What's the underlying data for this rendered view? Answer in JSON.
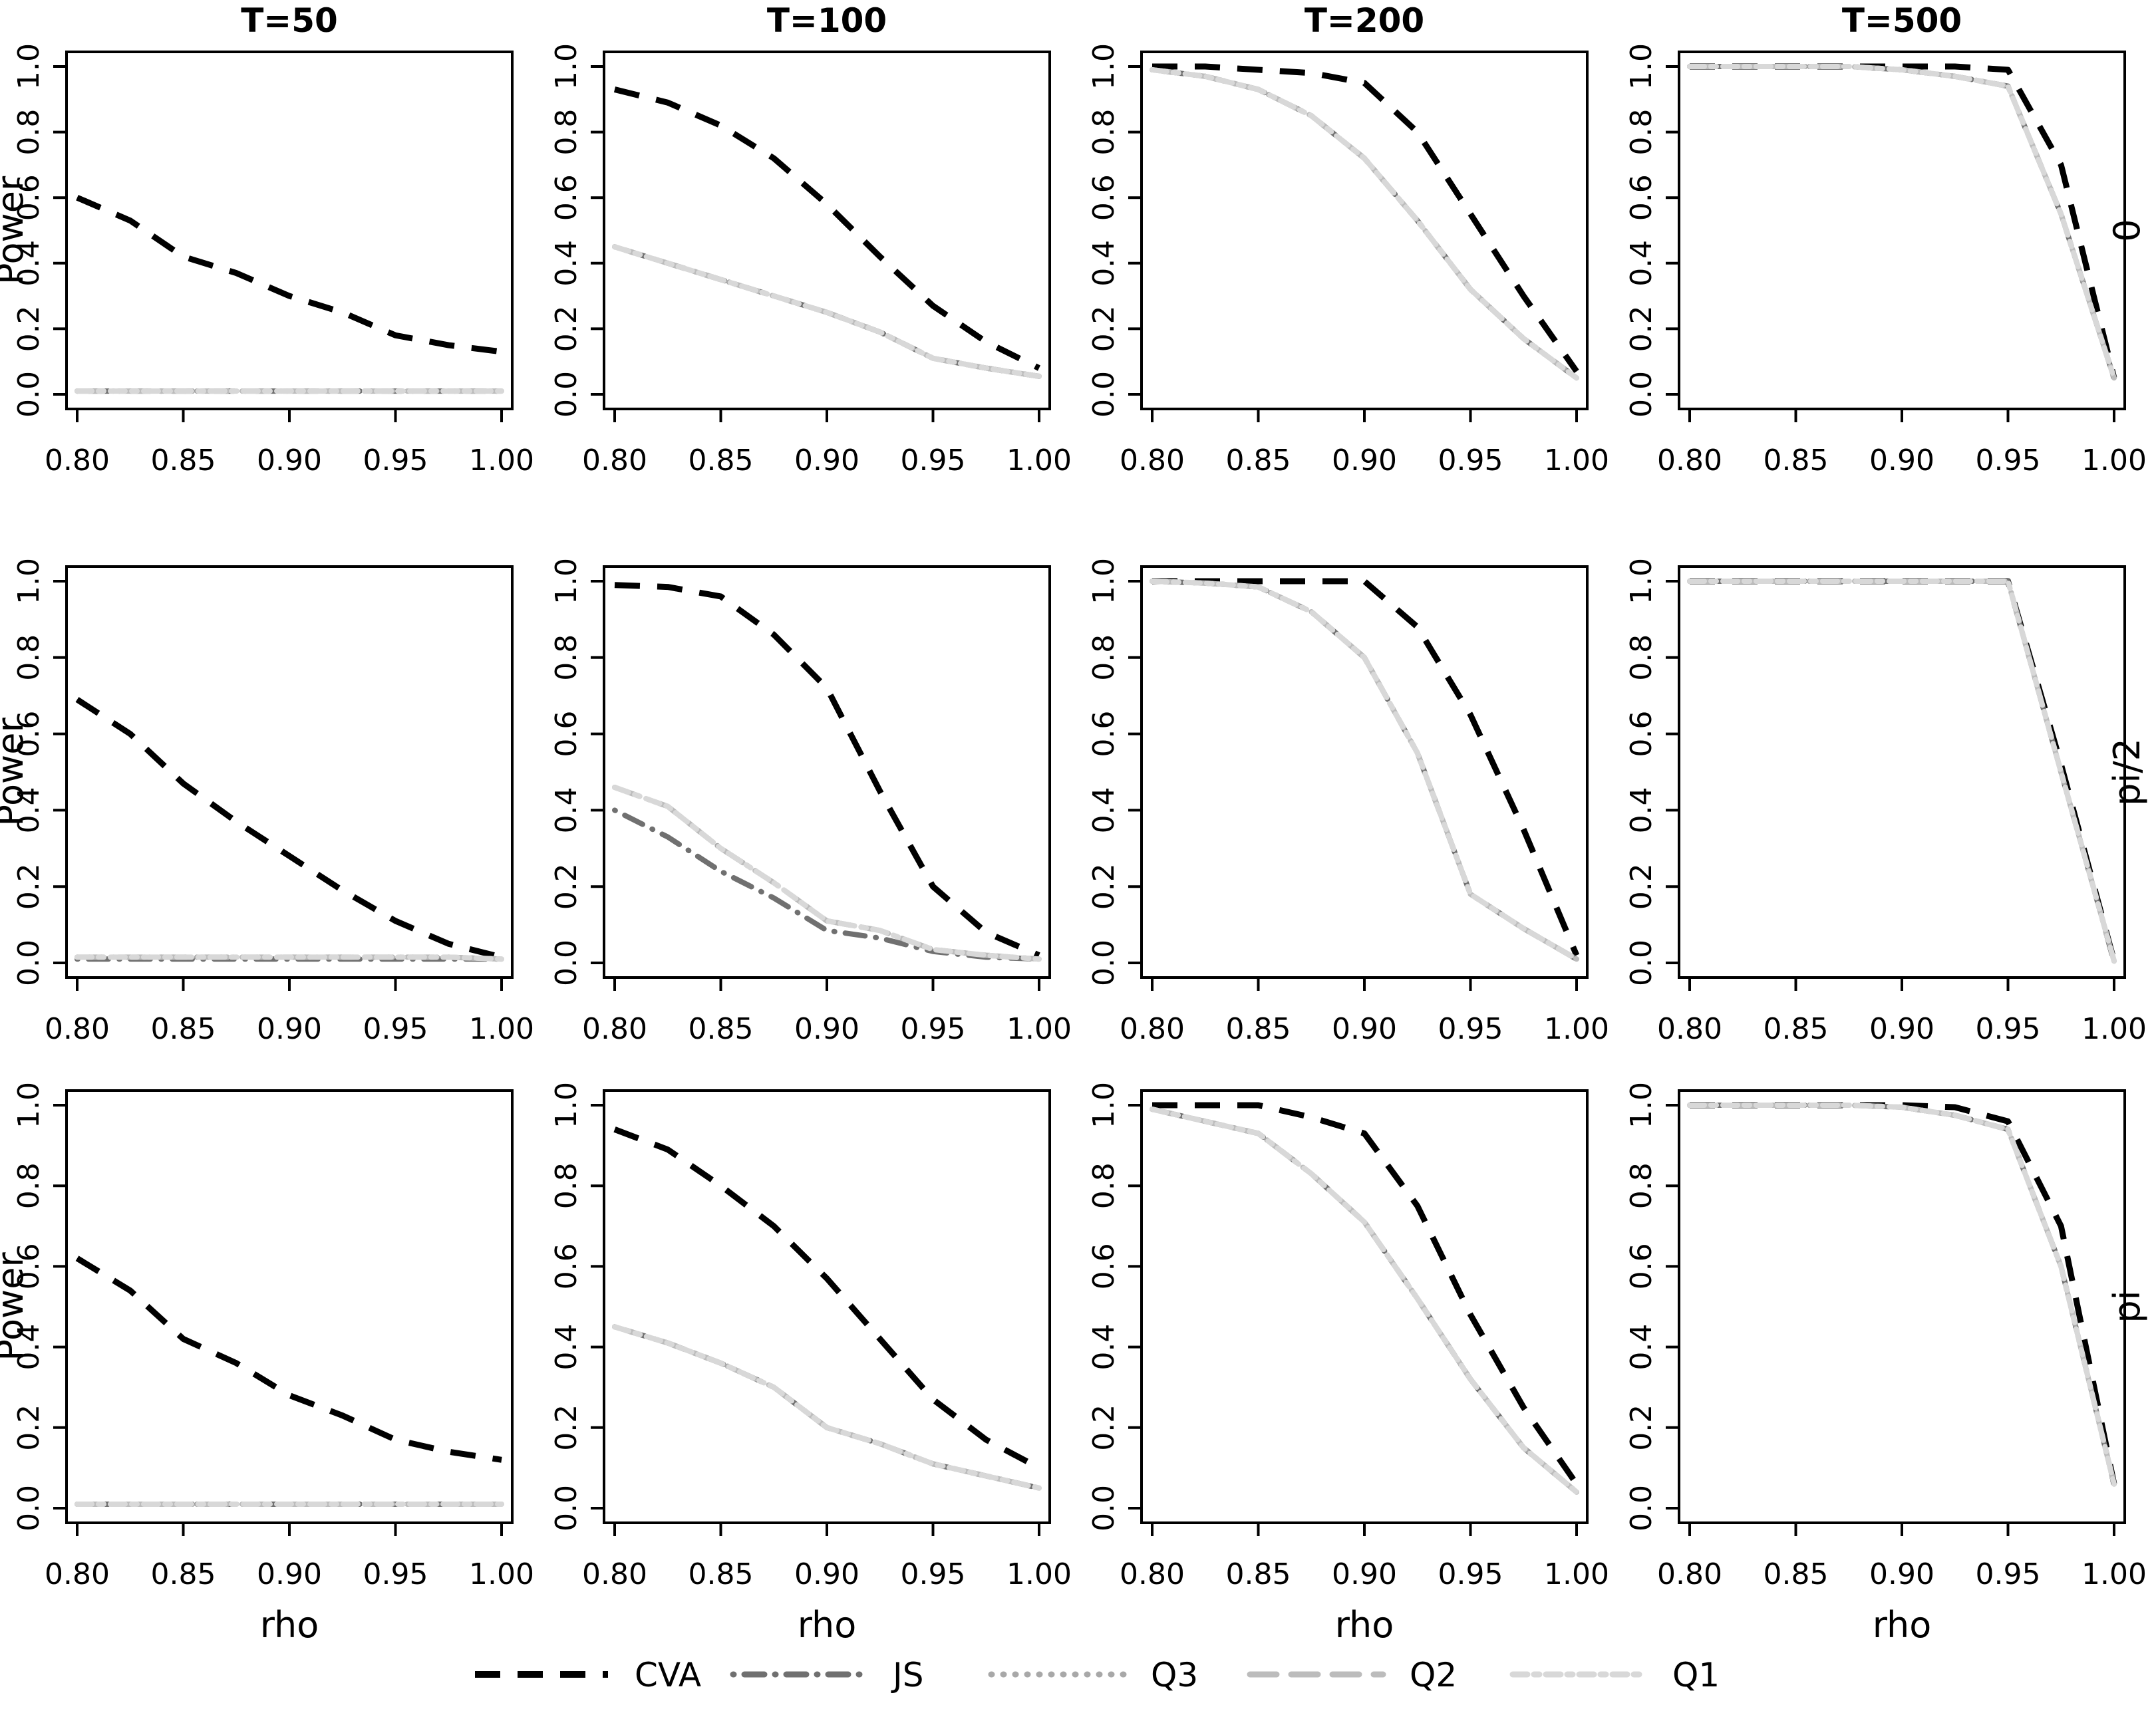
{
  "figure": {
    "col_titles": [
      "T=50",
      "T=100",
      "T=200",
      "T=500"
    ],
    "row_labels": [
      "0",
      "pi/2",
      "pi"
    ],
    "ylabel": "Power",
    "xlabel": "rho",
    "x_tick_labels": [
      "0.80",
      "0.85",
      "0.90",
      "0.95",
      "1.00"
    ],
    "y_tick_labels": [
      "0.0",
      "0.2",
      "0.4",
      "0.6",
      "0.8",
      "1.0"
    ],
    "background_color": "#ffffff",
    "axis_color": "#000000"
  },
  "legend": {
    "position": "bottom-center",
    "entries": [
      {
        "label": "CVA",
        "color": "#000000",
        "dash": "38 26",
        "width": 9,
        "linecap": "butt"
      },
      {
        "label": "JS",
        "color": "#707070",
        "dash": "1 16 30 16",
        "width": 8,
        "linecap": "round"
      },
      {
        "label": "Q3",
        "color": "#a8a8a8",
        "dash": "1 17",
        "width": 8,
        "linecap": "round"
      },
      {
        "label": "Q2",
        "color": "#bcbcbc",
        "dash": "40 22",
        "width": 8,
        "linecap": "round"
      },
      {
        "label": "Q1",
        "color": "#d8d8d8",
        "dash": "22 10 8 10",
        "width": 8,
        "linecap": "round"
      }
    ]
  },
  "chart_data": {
    "type": "line",
    "title": "",
    "xlabel": "rho",
    "ylabel": "Power",
    "x": [
      0.8,
      0.825,
      0.85,
      0.875,
      0.9,
      0.925,
      0.95,
      0.975,
      1.0
    ],
    "xlim": [
      0.8,
      1.0
    ],
    "ylim": [
      0.0,
      1.0
    ],
    "grid": false,
    "series_names": [
      "CVA",
      "JS",
      "Q3",
      "Q2",
      "Q1"
    ],
    "panels": [
      {
        "row": 0,
        "col": 0,
        "title": "T=50",
        "row_label": "",
        "series": {
          "CVA": [
            0.6,
            0.53,
            0.42,
            0.37,
            0.3,
            0.25,
            0.18,
            0.15,
            0.13
          ],
          "JS": [
            0.01,
            0.01,
            0.01,
            0.01,
            0.01,
            0.01,
            0.01,
            0.01,
            0.01
          ],
          "Q3": [
            0.01,
            0.01,
            0.01,
            0.01,
            0.01,
            0.01,
            0.01,
            0.01,
            0.01
          ],
          "Q2": [
            0.01,
            0.01,
            0.01,
            0.01,
            0.01,
            0.01,
            0.01,
            0.01,
            0.01
          ],
          "Q1": [
            0.01,
            0.01,
            0.01,
            0.01,
            0.01,
            0.01,
            0.01,
            0.01,
            0.01
          ]
        }
      },
      {
        "row": 0,
        "col": 1,
        "title": "T=100",
        "row_label": "",
        "series": {
          "CVA": [
            0.93,
            0.89,
            0.82,
            0.72,
            0.58,
            0.42,
            0.27,
            0.16,
            0.08
          ],
          "JS": [
            0.45,
            0.4,
            0.35,
            0.3,
            0.25,
            0.19,
            0.11,
            0.08,
            0.055
          ],
          "Q3": [
            0.45,
            0.4,
            0.35,
            0.3,
            0.25,
            0.19,
            0.11,
            0.08,
            0.055
          ],
          "Q2": [
            0.45,
            0.4,
            0.35,
            0.3,
            0.25,
            0.19,
            0.11,
            0.08,
            0.055
          ],
          "Q1": [
            0.45,
            0.4,
            0.35,
            0.3,
            0.25,
            0.19,
            0.11,
            0.08,
            0.055
          ]
        }
      },
      {
        "row": 0,
        "col": 2,
        "title": "T=200",
        "row_label": "",
        "series": {
          "CVA": [
            1.0,
            1.0,
            0.99,
            0.98,
            0.95,
            0.8,
            0.55,
            0.3,
            0.07
          ],
          "JS": [
            0.99,
            0.97,
            0.93,
            0.85,
            0.72,
            0.53,
            0.32,
            0.17,
            0.05
          ],
          "Q3": [
            0.99,
            0.97,
            0.93,
            0.85,
            0.72,
            0.53,
            0.32,
            0.17,
            0.05
          ],
          "Q2": [
            0.99,
            0.97,
            0.93,
            0.85,
            0.72,
            0.53,
            0.32,
            0.17,
            0.05
          ],
          "Q1": [
            0.99,
            0.97,
            0.93,
            0.85,
            0.72,
            0.53,
            0.32,
            0.17,
            0.05
          ]
        }
      },
      {
        "row": 0,
        "col": 3,
        "title": "T=500",
        "row_label": "0",
        "series": {
          "CVA": [
            1.0,
            1.0,
            1.0,
            1.0,
            1.0,
            1.0,
            0.99,
            0.7,
            0.05
          ],
          "JS": [
            1.0,
            1.0,
            1.0,
            1.0,
            0.99,
            0.97,
            0.94,
            0.55,
            0.05
          ],
          "Q3": [
            1.0,
            1.0,
            1.0,
            1.0,
            0.99,
            0.97,
            0.94,
            0.55,
            0.05
          ],
          "Q2": [
            1.0,
            1.0,
            1.0,
            1.0,
            0.99,
            0.97,
            0.94,
            0.55,
            0.05
          ],
          "Q1": [
            1.0,
            1.0,
            1.0,
            1.0,
            0.99,
            0.97,
            0.94,
            0.55,
            0.05
          ]
        }
      },
      {
        "row": 1,
        "col": 0,
        "title": "",
        "row_label": "",
        "series": {
          "CVA": [
            0.69,
            0.6,
            0.47,
            0.37,
            0.28,
            0.19,
            0.11,
            0.05,
            0.015
          ],
          "JS": [
            0.01,
            0.01,
            0.01,
            0.01,
            0.01,
            0.01,
            0.01,
            0.01,
            0.01
          ],
          "Q3": [
            0.015,
            0.015,
            0.015,
            0.015,
            0.015,
            0.015,
            0.015,
            0.015,
            0.01
          ],
          "Q2": [
            0.015,
            0.015,
            0.015,
            0.015,
            0.015,
            0.015,
            0.015,
            0.015,
            0.01
          ],
          "Q1": [
            0.015,
            0.015,
            0.015,
            0.015,
            0.015,
            0.015,
            0.015,
            0.015,
            0.01
          ]
        }
      },
      {
        "row": 1,
        "col": 1,
        "title": "",
        "row_label": "",
        "series": {
          "CVA": [
            0.99,
            0.985,
            0.96,
            0.86,
            0.72,
            0.45,
            0.2,
            0.08,
            0.02
          ],
          "JS": [
            0.4,
            0.33,
            0.24,
            0.17,
            0.085,
            0.065,
            0.03,
            0.015,
            0.01
          ],
          "Q3": [
            0.46,
            0.41,
            0.3,
            0.21,
            0.11,
            0.085,
            0.035,
            0.02,
            0.01
          ],
          "Q2": [
            0.46,
            0.41,
            0.3,
            0.21,
            0.11,
            0.085,
            0.035,
            0.02,
            0.01
          ],
          "Q1": [
            0.46,
            0.41,
            0.3,
            0.21,
            0.11,
            0.085,
            0.035,
            0.02,
            0.01
          ]
        }
      },
      {
        "row": 1,
        "col": 2,
        "title": "",
        "row_label": "",
        "series": {
          "CVA": [
            1.0,
            1.0,
            1.0,
            1.0,
            1.0,
            0.88,
            0.65,
            0.35,
            0.02
          ],
          "JS": [
            1.0,
            0.995,
            0.985,
            0.92,
            0.8,
            0.55,
            0.18,
            0.09,
            0.01
          ],
          "Q3": [
            1.0,
            0.995,
            0.985,
            0.92,
            0.8,
            0.55,
            0.18,
            0.09,
            0.01
          ],
          "Q2": [
            1.0,
            0.995,
            0.985,
            0.92,
            0.8,
            0.55,
            0.18,
            0.09,
            0.01
          ],
          "Q1": [
            1.0,
            0.995,
            0.985,
            0.92,
            0.8,
            0.55,
            0.18,
            0.09,
            0.01
          ]
        }
      },
      {
        "row": 1,
        "col": 3,
        "title": "",
        "row_label": "pi/2",
        "series": {
          "CVA": [
            1.0,
            1.0,
            1.0,
            1.0,
            1.0,
            1.0,
            1.0,
            0.52,
            0.005
          ],
          "JS": [
            1.0,
            1.0,
            1.0,
            1.0,
            1.0,
            1.0,
            1.0,
            0.5,
            0.005
          ],
          "Q3": [
            1.0,
            1.0,
            1.0,
            1.0,
            1.0,
            1.0,
            1.0,
            0.5,
            0.005
          ],
          "Q2": [
            1.0,
            1.0,
            1.0,
            1.0,
            1.0,
            1.0,
            1.0,
            0.5,
            0.005
          ],
          "Q1": [
            1.0,
            1.0,
            1.0,
            1.0,
            1.0,
            1.0,
            1.0,
            0.5,
            0.005
          ]
        }
      },
      {
        "row": 2,
        "col": 0,
        "title": "",
        "row_label": "",
        "series": {
          "CVA": [
            0.62,
            0.54,
            0.42,
            0.36,
            0.28,
            0.23,
            0.17,
            0.14,
            0.12
          ],
          "JS": [
            0.01,
            0.01,
            0.01,
            0.01,
            0.01,
            0.01,
            0.01,
            0.01,
            0.01
          ],
          "Q3": [
            0.01,
            0.01,
            0.01,
            0.01,
            0.01,
            0.01,
            0.01,
            0.01,
            0.01
          ],
          "Q2": [
            0.01,
            0.01,
            0.01,
            0.01,
            0.01,
            0.01,
            0.01,
            0.01,
            0.01
          ],
          "Q1": [
            0.01,
            0.01,
            0.01,
            0.01,
            0.01,
            0.01,
            0.01,
            0.01,
            0.01
          ]
        }
      },
      {
        "row": 2,
        "col": 1,
        "title": "",
        "row_label": "",
        "series": {
          "CVA": [
            0.94,
            0.89,
            0.8,
            0.7,
            0.57,
            0.42,
            0.27,
            0.17,
            0.1
          ],
          "JS": [
            0.45,
            0.41,
            0.36,
            0.3,
            0.2,
            0.16,
            0.11,
            0.08,
            0.05
          ],
          "Q3": [
            0.45,
            0.41,
            0.36,
            0.3,
            0.2,
            0.16,
            0.11,
            0.08,
            0.05
          ],
          "Q2": [
            0.45,
            0.41,
            0.36,
            0.3,
            0.2,
            0.16,
            0.11,
            0.08,
            0.05
          ],
          "Q1": [
            0.45,
            0.41,
            0.36,
            0.3,
            0.2,
            0.16,
            0.11,
            0.08,
            0.05
          ]
        }
      },
      {
        "row": 2,
        "col": 2,
        "title": "",
        "row_label": "",
        "series": {
          "CVA": [
            1.0,
            1.0,
            1.0,
            0.97,
            0.93,
            0.75,
            0.48,
            0.25,
            0.06
          ],
          "JS": [
            0.99,
            0.96,
            0.93,
            0.83,
            0.71,
            0.52,
            0.32,
            0.15,
            0.04
          ],
          "Q3": [
            0.99,
            0.96,
            0.93,
            0.83,
            0.71,
            0.52,
            0.32,
            0.15,
            0.04
          ],
          "Q2": [
            0.99,
            0.96,
            0.93,
            0.83,
            0.71,
            0.52,
            0.32,
            0.15,
            0.04
          ],
          "Q1": [
            0.99,
            0.96,
            0.93,
            0.83,
            0.71,
            0.52,
            0.32,
            0.15,
            0.04
          ]
        }
      },
      {
        "row": 2,
        "col": 3,
        "title": "",
        "row_label": "pi",
        "series": {
          "CVA": [
            1.0,
            1.0,
            1.0,
            1.0,
            1.0,
            0.995,
            0.96,
            0.7,
            0.06
          ],
          "JS": [
            1.0,
            1.0,
            1.0,
            1.0,
            0.995,
            0.975,
            0.94,
            0.6,
            0.06
          ],
          "Q3": [
            1.0,
            1.0,
            1.0,
            1.0,
            0.995,
            0.975,
            0.94,
            0.6,
            0.06
          ],
          "Q2": [
            1.0,
            1.0,
            1.0,
            1.0,
            0.995,
            0.975,
            0.94,
            0.6,
            0.06
          ],
          "Q1": [
            1.0,
            1.0,
            1.0,
            1.0,
            0.995,
            0.975,
            0.94,
            0.6,
            0.06
          ]
        }
      }
    ]
  }
}
